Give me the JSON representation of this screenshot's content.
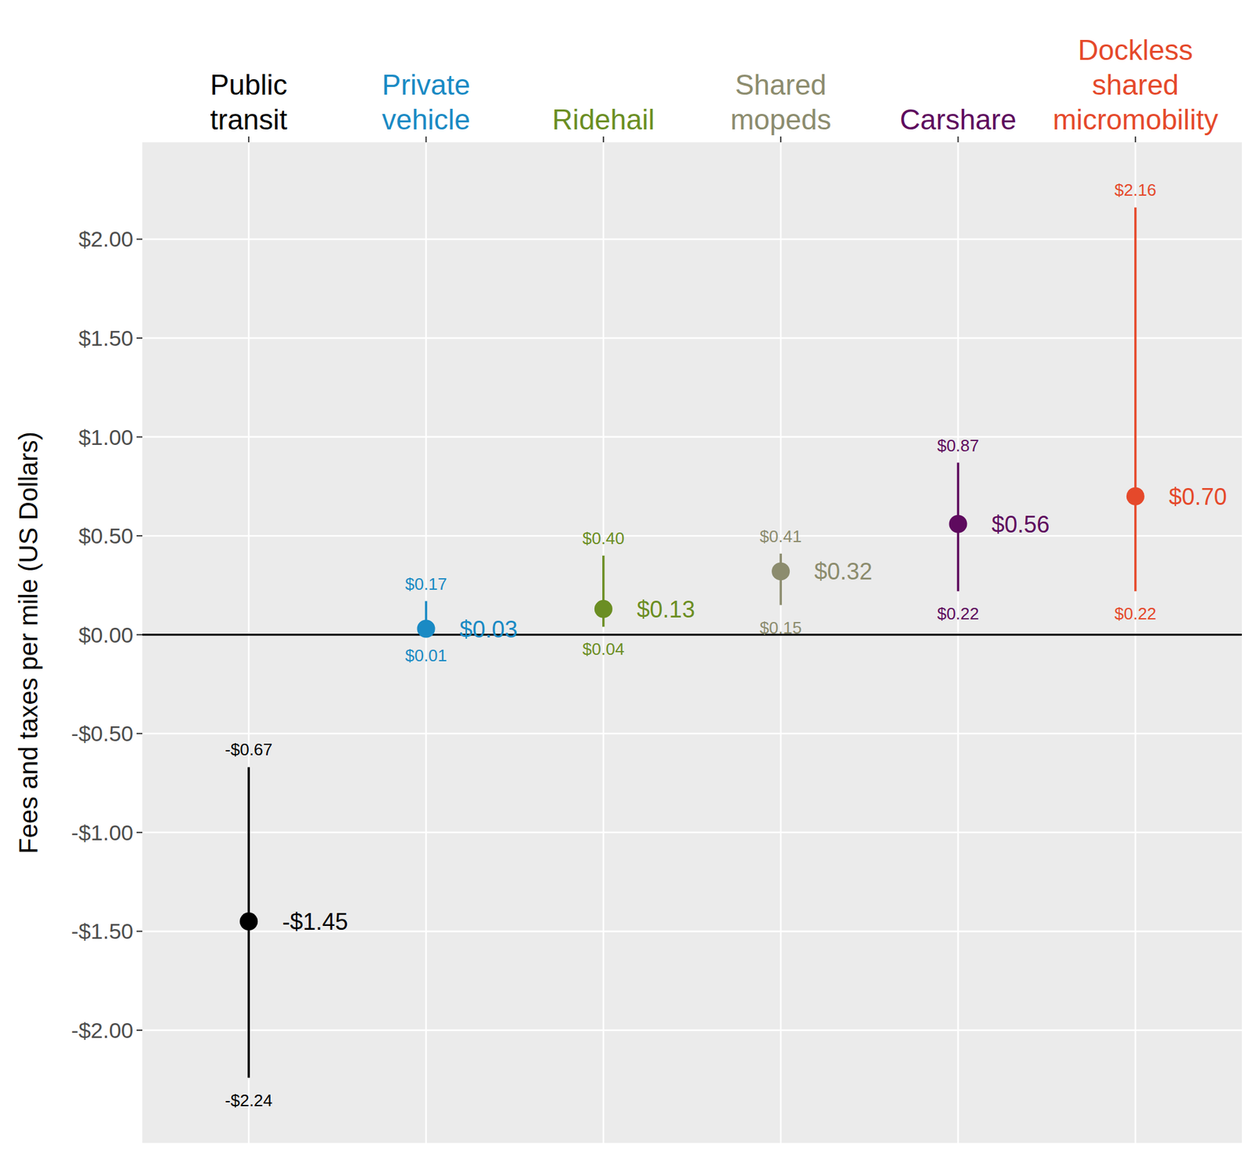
{
  "chart_data": {
    "type": "pointrange",
    "y_label": "Fees and taxes per mile (US Dollars)",
    "categories": [
      "Public transit",
      "Private vehicle",
      "Ridehail",
      "Shared mopeds",
      "Carshare",
      "Dockless shared micromobility"
    ],
    "colors": [
      "#000000",
      "#1a8ac4",
      "#6b8e23",
      "#8c8c6e",
      "#5e0a5e",
      "#e5492b"
    ],
    "values": [
      -1.45,
      0.03,
      0.13,
      0.32,
      0.56,
      0.7
    ],
    "value_labels": [
      "-$1.45",
      "$0.03",
      "$0.13",
      "$0.32",
      "$0.56",
      "$0.70"
    ],
    "low": [
      -2.24,
      0.01,
      0.04,
      0.15,
      0.22,
      0.22
    ],
    "low_labels": [
      "-$2.24",
      "$0.01",
      "$0.04",
      "$0.15",
      "$0.22",
      "$0.22"
    ],
    "high": [
      -0.67,
      0.17,
      0.4,
      0.41,
      0.87,
      2.16
    ],
    "high_labels": [
      "-$0.67",
      "$0.17",
      "$0.40",
      "$0.41",
      "$0.87",
      "$2.16"
    ],
    "reference_line": 0,
    "ylim": [
      -2.57,
      2.49
    ],
    "yticks": [
      {
        "value": -2,
        "label": "-$2.00"
      },
      {
        "value": -1.5,
        "label": "-$1.50"
      },
      {
        "value": -1,
        "label": "-$1.00"
      },
      {
        "value": -0.5,
        "label": "-$0.50"
      },
      {
        "value": 0,
        "label": "$0.00"
      },
      {
        "value": 0.5,
        "label": "$0.50"
      },
      {
        "value": 1,
        "label": "$1.00"
      },
      {
        "value": 1.5,
        "label": "$1.50"
      },
      {
        "value": 2,
        "label": "$2.00"
      }
    ],
    "grid": true,
    "data_labels": true
  }
}
